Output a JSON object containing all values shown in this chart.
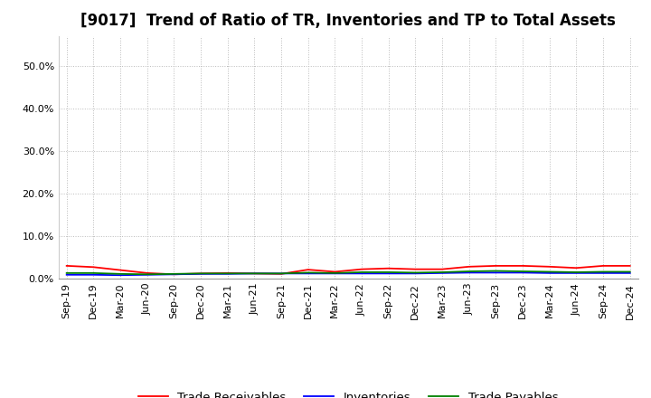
{
  "title": "[9017]  Trend of Ratio of TR, Inventories and TP to Total Assets",
  "x_labels": [
    "Sep-19",
    "Dec-19",
    "Mar-20",
    "Jun-20",
    "Sep-20",
    "Dec-20",
    "Mar-21",
    "Jun-21",
    "Sep-21",
    "Dec-21",
    "Mar-22",
    "Jun-22",
    "Sep-22",
    "Dec-22",
    "Mar-23",
    "Jun-23",
    "Sep-23",
    "Dec-23",
    "Mar-24",
    "Jun-24",
    "Sep-24",
    "Dec-24"
  ],
  "trade_receivables": [
    0.03,
    0.027,
    0.02,
    0.013,
    0.01,
    0.012,
    0.013,
    0.012,
    0.011,
    0.021,
    0.016,
    0.022,
    0.024,
    0.022,
    0.022,
    0.028,
    0.03,
    0.03,
    0.028,
    0.025,
    0.03,
    0.03
  ],
  "inventories": [
    0.009,
    0.009,
    0.008,
    0.009,
    0.01,
    0.011,
    0.011,
    0.012,
    0.012,
    0.012,
    0.012,
    0.012,
    0.012,
    0.012,
    0.013,
    0.014,
    0.014,
    0.014,
    0.013,
    0.013,
    0.013,
    0.013
  ],
  "trade_payables": [
    0.013,
    0.013,
    0.011,
    0.01,
    0.011,
    0.012,
    0.012,
    0.012,
    0.012,
    0.014,
    0.013,
    0.015,
    0.015,
    0.014,
    0.015,
    0.017,
    0.018,
    0.017,
    0.016,
    0.015,
    0.016,
    0.016
  ],
  "ylim": [
    0.0,
    0.57
  ],
  "yticks": [
    0.0,
    0.1,
    0.2,
    0.3,
    0.4,
    0.5
  ],
  "line_colors": {
    "trade_receivables": "#ff0000",
    "inventories": "#0000ff",
    "trade_payables": "#008000"
  },
  "legend_labels": [
    "Trade Receivables",
    "Inventories",
    "Trade Payables"
  ],
  "background_color": "#ffffff",
  "plot_bg_color": "#ffffff",
  "grid_color": "#bbbbbb",
  "title_fontsize": 12,
  "tick_fontsize": 8,
  "legend_fontsize": 9.5
}
